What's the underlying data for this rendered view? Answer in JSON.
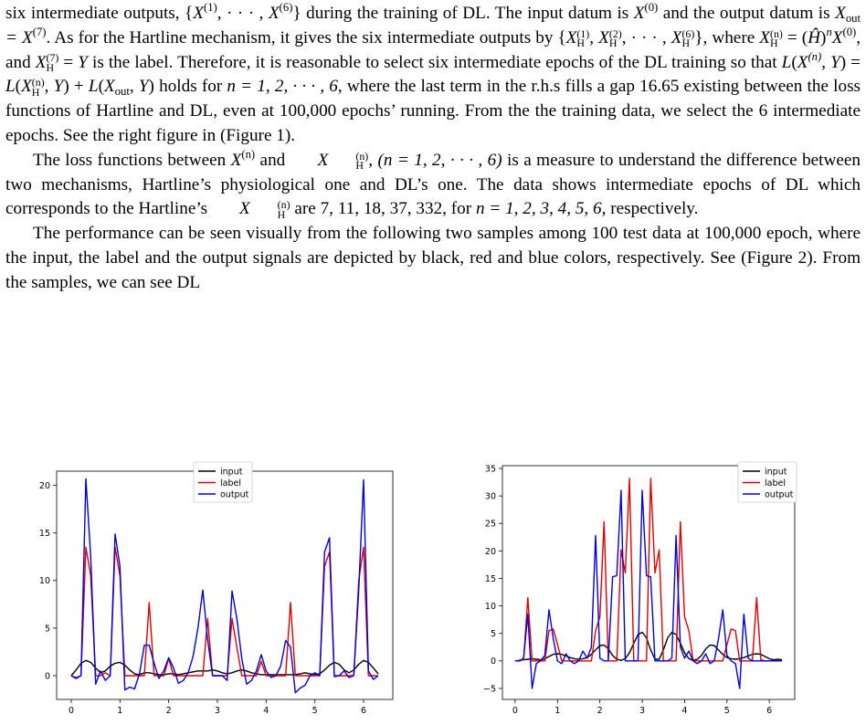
{
  "paragraphs": {
    "p1": {
      "a": "six intermediate outputs, {",
      "b": "} during the training of DL. The input datum is ",
      "c": " and the output datum is ",
      "d": ". As for the Hartline mechanism, it gives the six intermediate outputs by {",
      "e": "}, where ",
      "f": ", and ",
      "g": " is the label. Therefore, it is reasonable to select six intermediate epochs of the DL training so that ",
      "h": " holds for ",
      "i": ", where the last term in the r.h.s fills a gap 16.65 existing between the loss functions of Hartline and DL, even at 100,000 epochs’ running. From the the training data, we select the 6 intermediate epochs. See the right figure in (Figure 1)."
    },
    "p2": {
      "a": "The loss functions between ",
      "b": " and ",
      "c": ", ",
      "d": " is a measure to understand the difference between two mechanisms, Hartline’s physiological one and DL’s one. The data shows intermediate epochs of DL which corresponds to the Hartline’s ",
      "e": " are 7, 11, 18, 37, 332, for ",
      "f": ", respectively."
    },
    "p3": {
      "a": "The performance can be seen visually from the following two samples among 100 test data at 100,000 epoch, where the input, the label and the output signals are depicted by black, red and blue colors, respectively. See (Figure 2).   From the samples, we can see DL"
    }
  },
  "math": {
    "set_x": "X",
    "x0": "X",
    "xout": "X",
    "x7": "X",
    "sup1": "(1)",
    "sup6": "(6)",
    "sup0": "(0)",
    "sup7": "(7)",
    "supn": "(n)",
    "sub_out": "out",
    "sub_h": "H",
    "dots": "· · · ,",
    "eq": "=",
    "hhat": "Ĥ",
    "label_y": "Y",
    "loss_l": "L",
    "n_range": "n = 1, 2, · · · , 6",
    "n_range_paren": "(n = 1, 2, · · · , 6)",
    "n_list": "n = 1, 2, 3, 4, 5, 6"
  },
  "chart_data": [
    {
      "type": "line",
      "title": "",
      "xlabel": "",
      "ylabel": "",
      "xlim": [
        -0.3,
        6.6
      ],
      "ylim": [
        -2.5,
        21.5
      ],
      "xticks": [
        "0",
        "1",
        "2",
        "3",
        "4",
        "5",
        "6"
      ],
      "yticks": [
        "0",
        "5",
        "10",
        "15",
        "20"
      ],
      "legend_position": "top-center",
      "series": [
        {
          "name": "input",
          "color": "#000000",
          "x": [
            0,
            0.1,
            0.2,
            0.3,
            0.4,
            0.5,
            0.6,
            0.7,
            0.8,
            0.9,
            1.0,
            1.1,
            1.2,
            1.3,
            1.4,
            1.5,
            1.6,
            1.7,
            1.8,
            1.9,
            2.0,
            2.1,
            2.2,
            2.3,
            2.4,
            2.5,
            2.6,
            2.7,
            2.8,
            2.9,
            3.0,
            3.1,
            3.2,
            3.3,
            3.4,
            3.5,
            3.6,
            3.7,
            3.8,
            3.9,
            4.0,
            4.1,
            4.2,
            4.3,
            4.4,
            4.5,
            4.6,
            4.7,
            4.8,
            4.9,
            5.0,
            5.1,
            5.2,
            5.3,
            5.4,
            5.5,
            5.6,
            5.7,
            5.8,
            5.9,
            6.0,
            6.1,
            6.2,
            6.3
          ],
          "y": [
            0.0,
            0.6,
            1.3,
            1.6,
            1.4,
            0.8,
            0.3,
            0.5,
            1.0,
            1.3,
            1.4,
            1.1,
            0.6,
            0.2,
            0.1,
            0.3,
            0.3,
            0.2,
            0.1,
            0.1,
            0.2,
            0.2,
            0.1,
            0.2,
            0.3,
            0.4,
            0.5,
            0.5,
            0.5,
            0.6,
            0.5,
            0.3,
            0.2,
            0.3,
            0.5,
            0.6,
            0.5,
            0.3,
            0.2,
            0.1,
            0.1,
            0.1,
            0.1,
            0.1,
            0.1,
            0.1,
            0.1,
            0.2,
            0.3,
            0.2,
            0.1,
            0.2,
            0.6,
            1.1,
            1.4,
            1.2,
            0.6,
            0.3,
            0.6,
            1.2,
            1.6,
            1.4,
            0.8,
            0.2
          ]
        },
        {
          "name": "label",
          "color": "#e00000",
          "x": [
            0,
            0.1,
            0.2,
            0.3,
            0.4,
            0.5,
            0.6,
            0.7,
            0.8,
            0.9,
            1.0,
            1.1,
            1.2,
            1.3,
            1.4,
            1.5,
            1.6,
            1.7,
            1.8,
            1.9,
            2.0,
            2.1,
            2.2,
            2.3,
            2.4,
            2.5,
            2.6,
            2.7,
            2.8,
            2.9,
            3.0,
            3.1,
            3.2,
            3.3,
            3.4,
            3.5,
            3.6,
            3.7,
            3.8,
            3.9,
            4.0,
            4.1,
            4.2,
            4.3,
            4.4,
            4.5,
            4.6,
            4.7,
            4.8,
            4.9,
            5.0,
            5.1,
            5.2,
            5.3,
            5.4,
            5.5,
            5.6,
            5.7,
            5.8,
            5.9,
            6.0,
            6.1,
            6.2,
            6.3
          ],
          "y": [
            0.0,
            -0.2,
            0.0,
            13.5,
            10.5,
            0.0,
            0.0,
            0.3,
            0.0,
            13.5,
            10.5,
            0.0,
            0.0,
            0.0,
            0.0,
            0.0,
            7.7,
            0.0,
            0.0,
            0.0,
            1.8,
            0.0,
            0.0,
            0.0,
            0.0,
            0.0,
            0.0,
            0.0,
            6.0,
            0.0,
            0.0,
            0.0,
            0.0,
            6.0,
            3.0,
            0.0,
            0.0,
            0.0,
            0.0,
            1.5,
            0.0,
            0.0,
            0.0,
            0.0,
            0.0,
            7.7,
            0.0,
            0.0,
            0.0,
            0.0,
            0.0,
            0.0,
            11.5,
            13.0,
            0.0,
            0.0,
            0.0,
            0.0,
            0.0,
            10.0,
            13.5,
            0.0,
            0.0,
            0.0
          ]
        },
        {
          "name": "output",
          "color": "#0000dd",
          "x": [
            0,
            0.1,
            0.2,
            0.3,
            0.4,
            0.5,
            0.6,
            0.7,
            0.8,
            0.9,
            1.0,
            1.1,
            1.2,
            1.3,
            1.4,
            1.5,
            1.6,
            1.7,
            1.8,
            1.9,
            2.0,
            2.1,
            2.2,
            2.3,
            2.4,
            2.5,
            2.6,
            2.7,
            2.8,
            2.9,
            3.0,
            3.1,
            3.2,
            3.3,
            3.4,
            3.5,
            3.6,
            3.7,
            3.8,
            3.9,
            4.0,
            4.1,
            4.2,
            4.3,
            4.4,
            4.5,
            4.6,
            4.7,
            4.8,
            4.9,
            5.0,
            5.1,
            5.2,
            5.3,
            5.4,
            5.5,
            5.6,
            5.7,
            5.8,
            5.9,
            6.0,
            6.1,
            6.2,
            6.3
          ],
          "y": [
            0.0,
            -0.3,
            0.0,
            20.7,
            12.5,
            -0.9,
            0.5,
            -0.5,
            0.0,
            14.9,
            11.5,
            -1.5,
            -1.2,
            -1.4,
            0.2,
            3.2,
            3.2,
            1.3,
            -0.3,
            0.5,
            1.9,
            0.8,
            -0.8,
            -0.5,
            0.3,
            2.0,
            5.0,
            9.0,
            3.8,
            0.0,
            0.0,
            0.0,
            -0.5,
            8.9,
            6.0,
            1.8,
            -0.9,
            -0.5,
            0.5,
            2.2,
            0.5,
            -0.2,
            0.0,
            1.0,
            3.7,
            3.0,
            -1.8,
            -1.3,
            -1.0,
            0.0,
            0.3,
            0.0,
            13.0,
            14.5,
            -0.1,
            0.0,
            0.5,
            -0.2,
            0.0,
            9.0,
            20.6,
            0.5,
            -0.4,
            0.0
          ]
        }
      ]
    },
    {
      "type": "line",
      "title": "",
      "xlabel": "",
      "ylabel": "",
      "xlim": [
        -0.3,
        6.6
      ],
      "ylim": [
        -7,
        35.5
      ],
      "xticks": [
        "0",
        "1",
        "2",
        "3",
        "4",
        "5",
        "6"
      ],
      "yticks": [
        "−5",
        "0",
        "5",
        "10",
        "15",
        "20",
        "25",
        "30",
        "35"
      ],
      "legend_position": "top-right",
      "series": [
        {
          "name": "input",
          "color": "#000000",
          "x": [
            0,
            0.1,
            0.2,
            0.3,
            0.4,
            0.5,
            0.6,
            0.7,
            0.8,
            0.9,
            1.0,
            1.1,
            1.2,
            1.3,
            1.4,
            1.5,
            1.6,
            1.7,
            1.8,
            1.9,
            2.0,
            2.1,
            2.2,
            2.3,
            2.4,
            2.5,
            2.6,
            2.7,
            2.8,
            2.9,
            3.0,
            3.1,
            3.2,
            3.3,
            3.4,
            3.5,
            3.6,
            3.7,
            3.8,
            3.9,
            4.0,
            4.1,
            4.2,
            4.3,
            4.4,
            4.5,
            4.6,
            4.7,
            4.8,
            4.9,
            5.0,
            5.1,
            5.2,
            5.3,
            5.4,
            5.5,
            5.6,
            5.7,
            5.8,
            5.9,
            6.0,
            6.1,
            6.2,
            6.3
          ],
          "y": [
            0.0,
            0.1,
            0.2,
            0.3,
            0.4,
            0.3,
            0.2,
            0.4,
            0.8,
            1.2,
            1.3,
            1.2,
            0.9,
            0.6,
            0.4,
            0.3,
            0.4,
            0.6,
            1.2,
            2.0,
            2.8,
            2.9,
            2.2,
            1.0,
            0.3,
            0.1,
            0.4,
            1.5,
            3.2,
            4.8,
            5.2,
            4.2,
            2.0,
            0.3,
            0.3,
            2.0,
            4.2,
            5.2,
            4.8,
            3.2,
            1.5,
            0.4,
            0.1,
            0.3,
            1.0,
            2.2,
            2.9,
            2.8,
            2.0,
            1.2,
            0.6,
            0.4,
            0.3,
            0.4,
            0.6,
            0.9,
            1.2,
            1.3,
            1.2,
            0.8,
            0.4,
            0.2,
            0.3,
            0.2
          ]
        },
        {
          "name": "label",
          "color": "#e00000",
          "x": [
            0,
            0.1,
            0.2,
            0.3,
            0.4,
            0.5,
            0.6,
            0.7,
            0.8,
            0.9,
            1.0,
            1.1,
            1.2,
            1.3,
            1.4,
            1.5,
            1.6,
            1.7,
            1.8,
            1.9,
            2.0,
            2.1,
            2.2,
            2.3,
            2.4,
            2.5,
            2.6,
            2.7,
            2.8,
            2.9,
            3.0,
            3.1,
            3.2,
            3.3,
            3.4,
            3.5,
            3.6,
            3.7,
            3.8,
            3.9,
            4.0,
            4.1,
            4.2,
            4.3,
            4.4,
            4.5,
            4.6,
            4.7,
            4.8,
            4.9,
            5.0,
            5.1,
            5.2,
            5.3,
            5.4,
            5.5,
            5.6,
            5.7,
            5.8,
            5.9,
            6.0,
            6.1,
            6.2,
            6.3
          ],
          "y": [
            0.0,
            0.0,
            0.2,
            11.5,
            0.0,
            0.0,
            0.0,
            0.0,
            5.5,
            5.8,
            3.0,
            0.0,
            0.0,
            0.0,
            0.0,
            0.0,
            0.0,
            0.0,
            0.0,
            5.5,
            8.0,
            25.3,
            0.0,
            0.0,
            0.0,
            20.2,
            16.0,
            33.2,
            0.0,
            0.0,
            0.0,
            0.0,
            33.2,
            16.0,
            20.2,
            0.0,
            0.0,
            0.0,
            0.0,
            25.3,
            8.0,
            5.5,
            0.0,
            0.0,
            0.0,
            0.0,
            0.0,
            0.0,
            0.0,
            0.0,
            3.0,
            5.8,
            5.5,
            0.0,
            0.0,
            0.0,
            0.0,
            11.5,
            0.2,
            0.0,
            0.0,
            0.0,
            0.0,
            0.0
          ]
        },
        {
          "name": "output",
          "color": "#0000dd",
          "x": [
            0,
            0.1,
            0.2,
            0.3,
            0.4,
            0.5,
            0.6,
            0.7,
            0.8,
            0.9,
            1.0,
            1.1,
            1.2,
            1.3,
            1.4,
            1.5,
            1.6,
            1.7,
            1.8,
            1.9,
            2.0,
            2.1,
            2.2,
            2.3,
            2.4,
            2.5,
            2.6,
            2.7,
            2.8,
            2.9,
            3.0,
            3.1,
            3.2,
            3.3,
            3.4,
            3.5,
            3.6,
            3.7,
            3.8,
            3.9,
            4.0,
            4.1,
            4.2,
            4.3,
            4.4,
            4.5,
            4.6,
            4.7,
            4.8,
            4.9,
            5.0,
            5.1,
            5.2,
            5.3,
            5.4,
            5.5,
            5.6,
            5.7,
            5.8,
            5.9,
            6.0,
            6.1,
            6.2,
            6.3
          ],
          "y": [
            0.0,
            0.0,
            0.5,
            8.5,
            -5.0,
            -0.5,
            0.0,
            1.0,
            9.3,
            4.0,
            0.0,
            -0.5,
            1.3,
            0.0,
            -0.5,
            0.0,
            1.8,
            0.5,
            2.5,
            22.8,
            0.5,
            0.0,
            0.0,
            15.3,
            15.5,
            31.0,
            0.0,
            0.0,
            0.0,
            0.0,
            31.0,
            15.5,
            15.3,
            0.0,
            0.0,
            0.0,
            0.0,
            0.5,
            22.8,
            2.5,
            0.5,
            1.8,
            0.0,
            -0.5,
            0.0,
            1.3,
            -0.5,
            0.0,
            4.0,
            9.3,
            1.0,
            0.0,
            -0.5,
            -5.0,
            8.5,
            0.5,
            0.0,
            0.0,
            0.0,
            0.0,
            0.0,
            0.0,
            0.0,
            0.0
          ]
        }
      ]
    }
  ]
}
